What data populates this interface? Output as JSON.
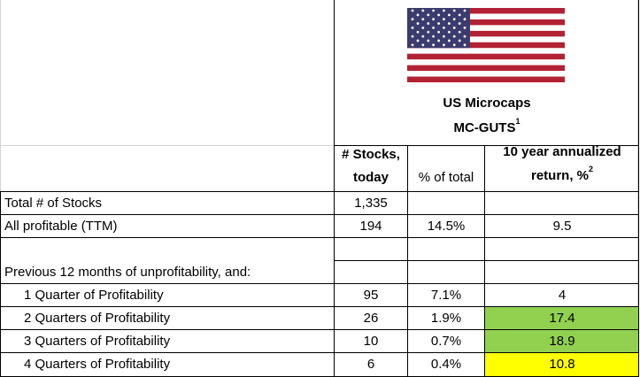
{
  "header": {
    "region_line1": "US Microcaps",
    "region_line2": "MC-GUTS",
    "region_sup": "1",
    "col_stocks_line1": "# Stocks,",
    "col_stocks_line2": "today",
    "col_pct": "% of total",
    "col_return_line1": "10 year annualized",
    "col_return_line2": "return, %",
    "col_return_sup": "2"
  },
  "flag": {
    "icon": "us-flag-icon",
    "red": "#b22234",
    "white": "#ffffff",
    "blue": "#3c3b6e"
  },
  "rows": [
    {
      "label": "Total # of Stocks",
      "stocks": "1,335",
      "pct": "",
      "ret": ""
    },
    {
      "label": "All profitable (TTM)",
      "stocks": "194",
      "pct": "14.5%",
      "ret": "9.5"
    },
    {
      "label": "",
      "stocks": "",
      "pct": "",
      "ret": ""
    },
    {
      "label": "Previous 12 months of unprofitability, and:",
      "stocks": "",
      "pct": "",
      "ret": ""
    },
    {
      "label": "1 Quarter of Profitability",
      "stocks": "95",
      "pct": "7.1%",
      "ret": "4"
    },
    {
      "label": "2 Quarters of Profitability",
      "stocks": "26",
      "pct": "1.9%",
      "ret": "17.4"
    },
    {
      "label": "3 Quarters of Profitability",
      "stocks": "10",
      "pct": "0.7%",
      "ret": "18.9"
    },
    {
      "label": "4 Quarters of Profitability",
      "stocks": "6",
      "pct": "0.4%",
      "ret": "10.8"
    }
  ],
  "highlight_colors": {
    "green": "#92d050",
    "yellow": "#ffff00"
  }
}
